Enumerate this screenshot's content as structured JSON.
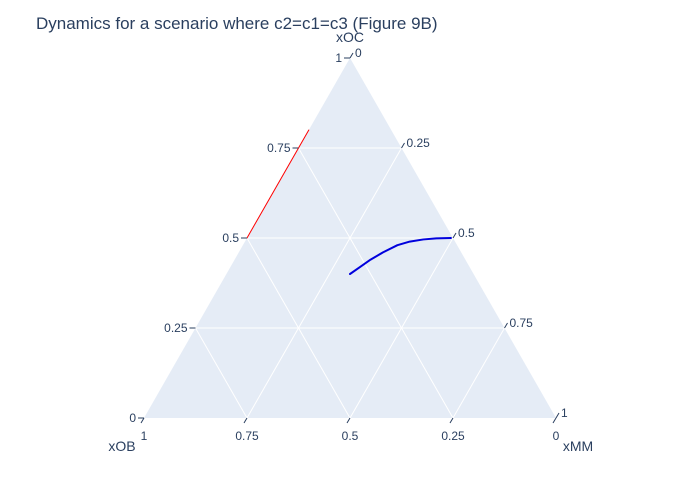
{
  "chart_data": {
    "type": "ternary",
    "title": "Dynamics for a scenario where c2=c1=c3 (Figure 9B)",
    "axes": {
      "a": {
        "title": "xOC",
        "ticks": [
          0,
          0.25,
          0.5,
          0.75,
          1
        ],
        "tick_labels": [
          "0",
          "0.25",
          "0.5",
          "0.75",
          "1"
        ]
      },
      "b": {
        "title": "xOB",
        "ticks": [
          0,
          0.25,
          0.5,
          0.75,
          1
        ],
        "tick_labels": [
          "0",
          "0.25",
          "0.5",
          "0.75",
          "1"
        ]
      },
      "c": {
        "title": "xMM",
        "ticks": [
          0,
          0.25,
          0.5,
          0.75,
          1
        ],
        "tick_labels": [
          "0",
          "0.25",
          "0.5",
          "0.75",
          "1"
        ]
      }
    },
    "grid": true,
    "colors": {
      "background": "#E5ECF6",
      "grid": "#FFFFFF",
      "text": "#2a3f5f"
    },
    "series": [
      {
        "color": "#FF0000",
        "line_width": 1,
        "points": [
          {
            "a": 0.5,
            "b": 0.5,
            "c": 0.0
          },
          {
            "a": 0.6,
            "b": 0.4,
            "c": 0.0
          },
          {
            "a": 0.7,
            "b": 0.3,
            "c": 0.0
          },
          {
            "a": 0.8,
            "b": 0.2,
            "c": 0.0
          }
        ]
      },
      {
        "color": "#0000DD",
        "line_width": 2,
        "points": [
          {
            "a": 0.4,
            "b": 0.3,
            "c": 0.3
          },
          {
            "a": 0.42,
            "b": 0.265,
            "c": 0.315
          },
          {
            "a": 0.44,
            "b": 0.23,
            "c": 0.33
          },
          {
            "a": 0.46,
            "b": 0.19,
            "c": 0.35
          },
          {
            "a": 0.48,
            "b": 0.145,
            "c": 0.375
          },
          {
            "a": 0.49,
            "b": 0.11,
            "c": 0.4
          },
          {
            "a": 0.496,
            "b": 0.074,
            "c": 0.43
          },
          {
            "a": 0.499,
            "b": 0.041,
            "c": 0.46
          },
          {
            "a": 0.5,
            "b": 0.005,
            "c": 0.495
          }
        ]
      }
    ]
  }
}
